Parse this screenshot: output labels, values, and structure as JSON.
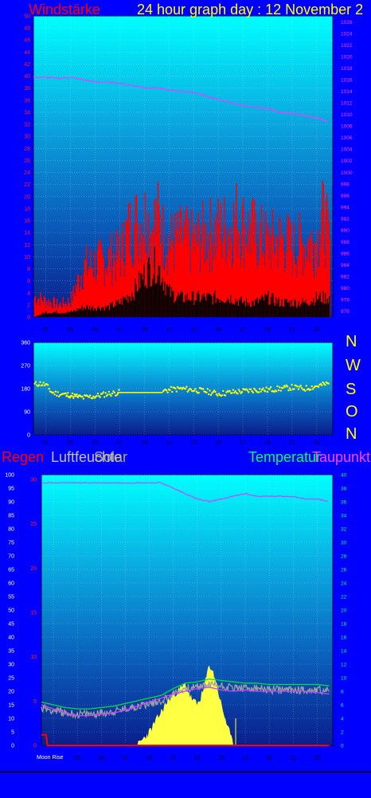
{
  "header": {
    "title": "24 hour graph day : 12 November 2",
    "wind_label": "Windstärke",
    "pressure_label": "ber 2"
  },
  "direction_letters": [
    "N",
    "W",
    "S",
    "O",
    "N"
  ],
  "colors": {
    "background": "#0000ff",
    "wind": "#ff0000",
    "windmean": "#000000",
    "pressure": "#dd44ff",
    "direction": "#ffff00",
    "temperature": "#00dd44",
    "dewpoint": "#cc44ff",
    "humidity": "#a0a0a0",
    "solar": "#ffff44",
    "rain": "#ff0000"
  },
  "legend_bottom": {
    "rain": "Regen",
    "humidity": "Luftfeuchte",
    "solar": "Solar",
    "temperature": "Temperatur",
    "dewpoint": "Taupunkt",
    "moon": "Moon Rise"
  },
  "chart_data": [
    {
      "type": "bar",
      "x_ticks": [
        "01",
        "03",
        "05",
        "07",
        "09",
        "11",
        "13",
        "15",
        "17",
        "19",
        "21",
        "23"
      ],
      "y_left_ticks": [
        "0",
        "2",
        "4",
        "6",
        "8",
        "10",
        "12",
        "14",
        "16",
        "18",
        "20",
        "22",
        "24",
        "26",
        "28",
        "30",
        "32",
        "34",
        "36",
        "38",
        "40",
        "42",
        "44",
        "46",
        "48",
        "50"
      ],
      "y_right_ticks": [
        "976",
        "978",
        "980",
        "982",
        "984",
        "986",
        "988",
        "990",
        "992",
        "994",
        "996",
        "998",
        "1000",
        "1002",
        "1004",
        "1006",
        "1008",
        "1010",
        "1012",
        "1014",
        "1016",
        "1018",
        "1020",
        "1022",
        "1024",
        "1026"
      ],
      "ylim": [
        0,
        50
      ],
      "ylim_right": [
        975,
        1027
      ],
      "xlim": [
        0,
        24.3
      ],
      "series": [
        {
          "name": "Windstärke",
          "hours": [
            0,
            1,
            2,
            3,
            3.5,
            4,
            5,
            6,
            7,
            7.5,
            8,
            9,
            9.5,
            10,
            10.5,
            11,
            12,
            13,
            14,
            15,
            16,
            16.5,
            17,
            18,
            19,
            20,
            21,
            22,
            23,
            23.5,
            24
          ],
          "values": [
            5,
            4,
            3,
            4,
            8,
            12,
            13,
            14,
            15,
            20,
            22,
            24,
            22,
            24,
            20,
            18,
            19,
            18,
            20,
            21,
            22,
            24,
            22,
            20,
            18,
            19,
            17,
            18,
            19,
            24,
            18
          ]
        },
        {
          "name": "Windmittel",
          "hours": [
            0,
            1,
            2,
            3,
            4,
            5,
            6,
            7,
            8,
            9,
            10,
            11,
            12,
            13,
            14,
            15,
            16,
            17,
            18,
            19,
            20,
            21,
            22,
            23,
            24
          ],
          "values": [
            0,
            1,
            1,
            1,
            2,
            2,
            2,
            3,
            5,
            9,
            11,
            5,
            4,
            4,
            4,
            4,
            4,
            3,
            3,
            4,
            3,
            3,
            3,
            4,
            4
          ]
        },
        {
          "name": "Luftdruck",
          "hours": [
            0,
            1,
            2,
            3,
            4,
            5,
            6,
            7,
            8,
            9,
            10,
            11,
            12,
            13,
            14,
            15,
            16,
            17,
            18,
            19,
            20,
            21,
            22,
            23,
            24
          ],
          "values": [
            1016.4,
            1016.4,
            1016.2,
            1016.4,
            1016.0,
            1015.6,
            1015.6,
            1015.4,
            1015.0,
            1014.6,
            1014.6,
            1014.2,
            1014.0,
            1013.8,
            1013.2,
            1012.6,
            1012.0,
            1011.6,
            1011.2,
            1011.0,
            1010.4,
            1010.2,
            1009.8,
            1009.4,
            1008.6
          ]
        }
      ]
    },
    {
      "type": "scatter",
      "x_ticks": [
        "01",
        "03",
        "05",
        "07",
        "09",
        "11",
        "13",
        "15",
        "17",
        "19",
        "21",
        "23"
      ],
      "y_ticks": [
        "0",
        "90",
        "180",
        "270",
        "360"
      ],
      "ylim": [
        0,
        360
      ],
      "xlim": [
        0,
        24.3
      ],
      "series": [
        {
          "name": "Windrichtung",
          "hours": [
            0,
            0.5,
            1,
            1.5,
            2,
            3,
            3.5,
            4,
            5,
            6,
            7,
            8,
            9,
            10,
            11,
            12,
            13,
            14,
            15,
            16,
            17,
            18,
            19,
            20,
            21,
            22,
            23,
            24
          ],
          "values": [
            195,
            200,
            195,
            165,
            160,
            155,
            150,
            145,
            150,
            160,
            165,
            165,
            165,
            165,
            175,
            180,
            175,
            170,
            160,
            165,
            170,
            175,
            175,
            180,
            185,
            180,
            190,
            200
          ]
        }
      ]
    },
    {
      "type": "line",
      "x_ticks": [
        "01",
        "03",
        "05",
        "07",
        "09",
        "11",
        "13",
        "15",
        "17",
        "19",
        "21",
        "23"
      ],
      "y_left_ticks": [
        "0",
        "5",
        "10",
        "15",
        "20",
        "25",
        "30",
        "35",
        "40",
        "45",
        "50",
        "55",
        "60",
        "65",
        "70",
        "75",
        "80",
        "85",
        "90",
        "95",
        "100"
      ],
      "y_rain_ticks": [
        "0",
        "5",
        "10",
        "15",
        "20",
        "25",
        "30"
      ],
      "y_right_ticks": [
        "0",
        "2",
        "4",
        "6",
        "8",
        "10",
        "12",
        "14",
        "16",
        "18",
        "20",
        "22",
        "24",
        "26",
        "28",
        "30",
        "32",
        "34",
        "36",
        "38",
        "40"
      ],
      "ylim": [
        0,
        100
      ],
      "ylim_right": [
        0,
        40
      ],
      "xlim": [
        0,
        24.3
      ],
      "series": [
        {
          "name": "Luftfeuchte",
          "hours": [
            0,
            1,
            2,
            3,
            4,
            5,
            6,
            7,
            8,
            9,
            10,
            11,
            12,
            13,
            14,
            15,
            16,
            17,
            18,
            19,
            20,
            21,
            22,
            23,
            24
          ],
          "values": [
            97,
            97,
            97,
            97,
            97,
            97,
            97,
            97,
            97,
            97,
            97,
            95,
            93,
            91,
            90,
            91,
            92,
            93,
            92,
            92,
            92,
            92,
            91,
            91,
            90
          ]
        },
        {
          "name": "Temperatur",
          "hours": [
            0,
            1,
            2,
            3,
            4,
            5,
            6,
            7,
            8,
            9,
            10,
            11,
            12,
            13,
            14,
            15,
            16,
            17,
            18,
            19,
            20,
            21,
            22,
            23,
            24
          ],
          "values": [
            6.4,
            6.0,
            5.6,
            5.4,
            5.4,
            5.6,
            5.8,
            6.2,
            6.6,
            7.0,
            7.4,
            8.4,
            9.2,
            9.4,
            9.8,
            9.6,
            9.4,
            9.2,
            9.2,
            9.0,
            9.0,
            9.0,
            9.0,
            9.0,
            8.8
          ]
        },
        {
          "name": "Taupunkt",
          "hours": [
            0,
            1,
            2,
            3,
            4,
            5,
            6,
            7,
            8,
            9,
            10,
            11,
            12,
            13,
            14,
            15,
            16,
            17,
            18,
            19,
            20,
            21,
            22,
            23,
            24
          ],
          "values": [
            6.0,
            5.4,
            4.8,
            4.4,
            4.4,
            4.6,
            4.8,
            5.2,
            5.8,
            6.4,
            7.0,
            7.6,
            8.0,
            8.4,
            8.6,
            8.2,
            8.0,
            8.2,
            8.0,
            8.0,
            8.0,
            8.0,
            8.0,
            7.8,
            7.6
          ]
        },
        {
          "name": "Solar",
          "hours": [
            0,
            8,
            9,
            10,
            10.5,
            11,
            12,
            12.5,
            13,
            13.5,
            14,
            14.5,
            15,
            15.5,
            16,
            24
          ],
          "values": [
            0,
            0,
            2,
            5,
            6.5,
            7.5,
            9,
            7,
            6,
            8,
            12,
            10,
            6,
            3,
            0,
            0
          ]
        },
        {
          "name": "Regen",
          "hours": [
            0,
            0.4,
            0.5,
            0.6,
            1,
            24
          ],
          "values": [
            1.2,
            1.2,
            0,
            0,
            0,
            0
          ]
        }
      ]
    }
  ]
}
